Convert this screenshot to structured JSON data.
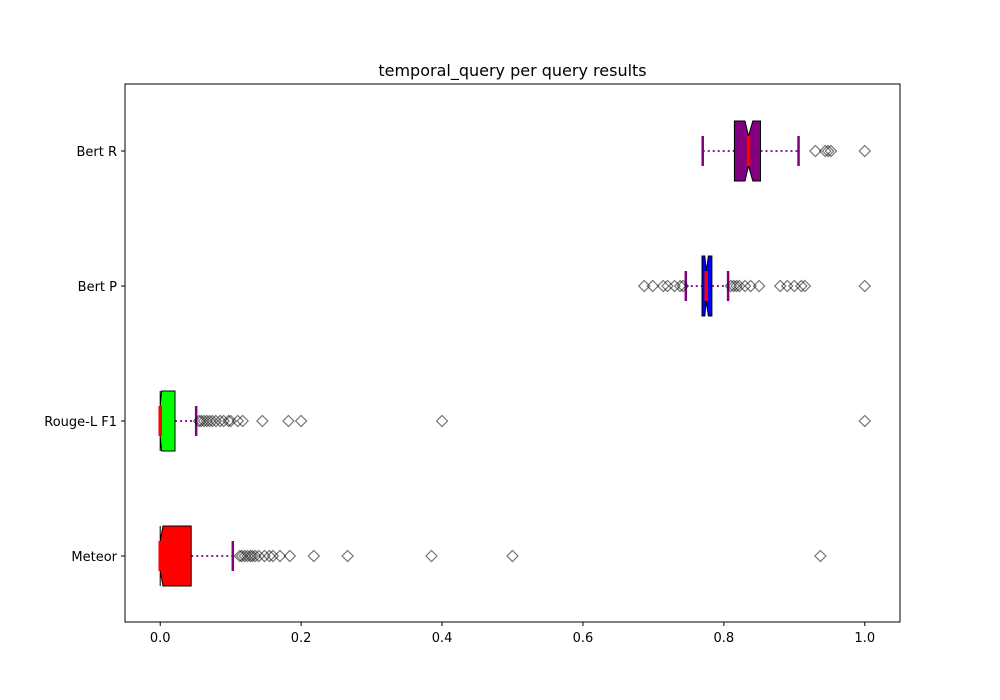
{
  "chart_data": {
    "type": "boxplot",
    "orientation": "horizontal",
    "title": "temporal_query per query results",
    "xlabel": "",
    "ylabel": "",
    "xlim": [
      -0.05,
      1.05
    ],
    "x_ticks": [
      0.0,
      0.2,
      0.4,
      0.6,
      0.8,
      1.0
    ],
    "x_tick_labels": [
      "0.0",
      "0.2",
      "0.4",
      "0.6",
      "0.8",
      "1.0"
    ],
    "grid": false,
    "categories": [
      "Meteor",
      "Rouge-L F1",
      "Bert P",
      "Bert R"
    ],
    "series": [
      {
        "label": "Meteor",
        "fill": "#ff0000",
        "whisker_low": 0.0,
        "q1": 0.0,
        "median": 0.0,
        "q3": 0.044,
        "whisker_high": 0.103,
        "notch_low": 0.0,
        "notch_high": 0.004,
        "outliers": [
          0.113,
          0.116,
          0.12,
          0.124,
          0.128,
          0.131,
          0.135,
          0.14,
          0.148,
          0.155,
          0.16,
          0.17,
          0.184,
          0.218,
          0.266,
          0.385,
          0.5,
          0.937
        ]
      },
      {
        "label": "Rouge-L F1",
        "fill": "#00ff00",
        "whisker_low": 0.0,
        "q1": 0.0,
        "median": 0.0,
        "q3": 0.021,
        "whisker_high": 0.051,
        "notch_low": 0.0,
        "notch_high": 0.002,
        "outliers": [
          0.055,
          0.058,
          0.062,
          0.066,
          0.07,
          0.074,
          0.079,
          0.085,
          0.09,
          0.097,
          0.1,
          0.11,
          0.117,
          0.145,
          0.182,
          0.2,
          0.4,
          1.0
        ]
      },
      {
        "label": "Bert P",
        "fill": "#0000ff",
        "whisker_low": 0.746,
        "q1": 0.769,
        "median": 0.775,
        "q3": 0.783,
        "whisker_high": 0.806,
        "notch_low": 0.773,
        "notch_high": 0.778,
        "outliers": [
          0.687,
          0.699,
          0.714,
          0.72,
          0.73,
          0.738,
          0.742,
          0.81,
          0.814,
          0.818,
          0.822,
          0.83,
          0.838,
          0.85,
          0.88,
          0.89,
          0.9,
          0.91,
          0.915,
          1.0
        ]
      },
      {
        "label": "Bert R",
        "fill": "#800080",
        "whisker_low": 0.77,
        "q1": 0.815,
        "median": 0.835,
        "q3": 0.852,
        "whisker_high": 0.906,
        "notch_low": 0.83,
        "notch_high": 0.841,
        "outliers": [
          0.93,
          0.944,
          0.948,
          0.952,
          1.0
        ]
      }
    ],
    "style": {
      "whisker_line_color": "#800080",
      "cap_color": "#800080",
      "median_color": "#ff0000",
      "box_edge_color": "#000000",
      "outlier_marker": "diamond",
      "outlier_edge_color": "#000000"
    }
  }
}
